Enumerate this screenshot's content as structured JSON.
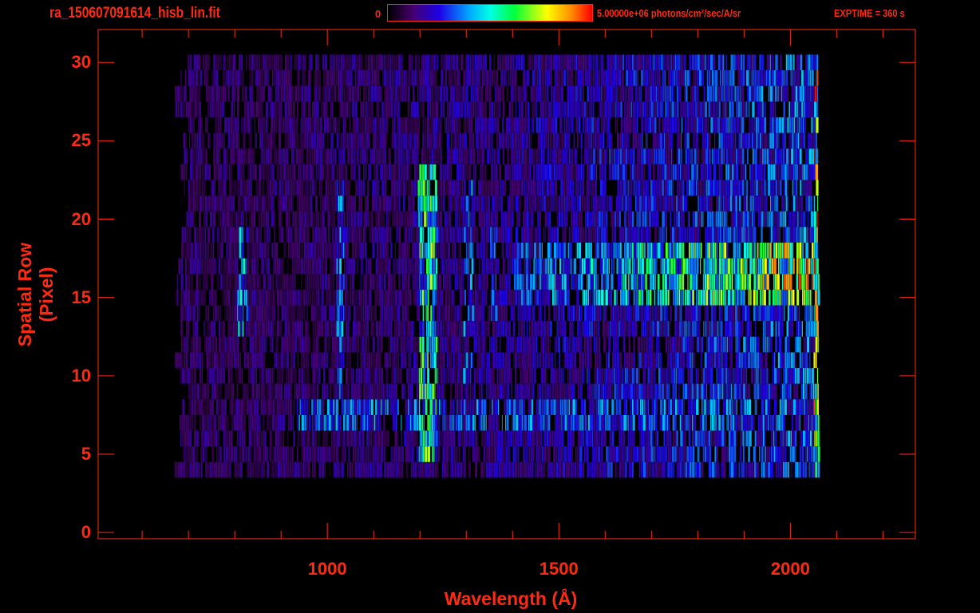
{
  "header": {
    "filename": "ra_150607091614_hisb_lin.fit",
    "colorbar_min_label": "0",
    "colorbar_max_label": "5.00000e+06 photons/cm²/sec/A/sr",
    "exptime_label": "EXPTIME = 360 s"
  },
  "chart_data": {
    "type": "heatmap",
    "title": "ra_150607091614_hisb_lin.fit",
    "xlabel": "Wavelength (Å)",
    "ylabel": "Spatial Row (Pixel)",
    "xlim": [
      505,
      2270
    ],
    "ylim": [
      -0.4,
      32.1
    ],
    "x_ticks": [
      1000,
      1500,
      2000
    ],
    "x_tick_labels": [
      "1000",
      "1500",
      "2000"
    ],
    "y_ticks": [
      0,
      5,
      10,
      15,
      20,
      25,
      30
    ],
    "y_tick_labels": [
      "0",
      "5",
      "10",
      "15",
      "20",
      "25",
      "30"
    ],
    "colorbar": {
      "min": 0,
      "max": 5000000,
      "colormap": "rainbow",
      "scale": "linear"
    },
    "colors": {
      "axis": "#ff2a12",
      "background": "#000000"
    },
    "detector_coverage": {
      "wavelength": [
        670,
        2060
      ],
      "rows": [
        4,
        30
      ]
    },
    "features": [
      {
        "name": "Lyman-alpha line",
        "wavelength": [
          1195,
          1235
        ],
        "rows": [
          5,
          24
        ],
        "level": 0.58
      },
      {
        "name": "line 1026",
        "wavelength": [
          1018,
          1034
        ],
        "rows": [
          9,
          23
        ],
        "level": 0.38
      },
      {
        "name": "line 815",
        "wavelength": [
          805,
          825
        ],
        "rows": [
          13,
          20
        ],
        "level": 0.4
      },
      {
        "name": "line 1304",
        "wavelength": [
          1293,
          1313
        ],
        "rows": [
          10,
          23
        ],
        "level": 0.33
      },
      {
        "name": "line 1356",
        "wavelength": [
          1348,
          1364
        ],
        "rows": [
          14,
          22
        ],
        "level": 0.3
      },
      {
        "name": "continuum band low",
        "wavelength": [
          930,
          2060
        ],
        "rows": [
          7,
          9
        ],
        "level": 0.34
      },
      {
        "name": "continuum band high",
        "wavelength": [
          1400,
          2060
        ],
        "rows": [
          15,
          19
        ],
        "level": [
          0.3,
          0.78
        ]
      },
      {
        "name": "detector edge",
        "wavelength": [
          2050,
          2065
        ],
        "rows": [
          2,
          30
        ],
        "level": 0.8
      }
    ]
  }
}
